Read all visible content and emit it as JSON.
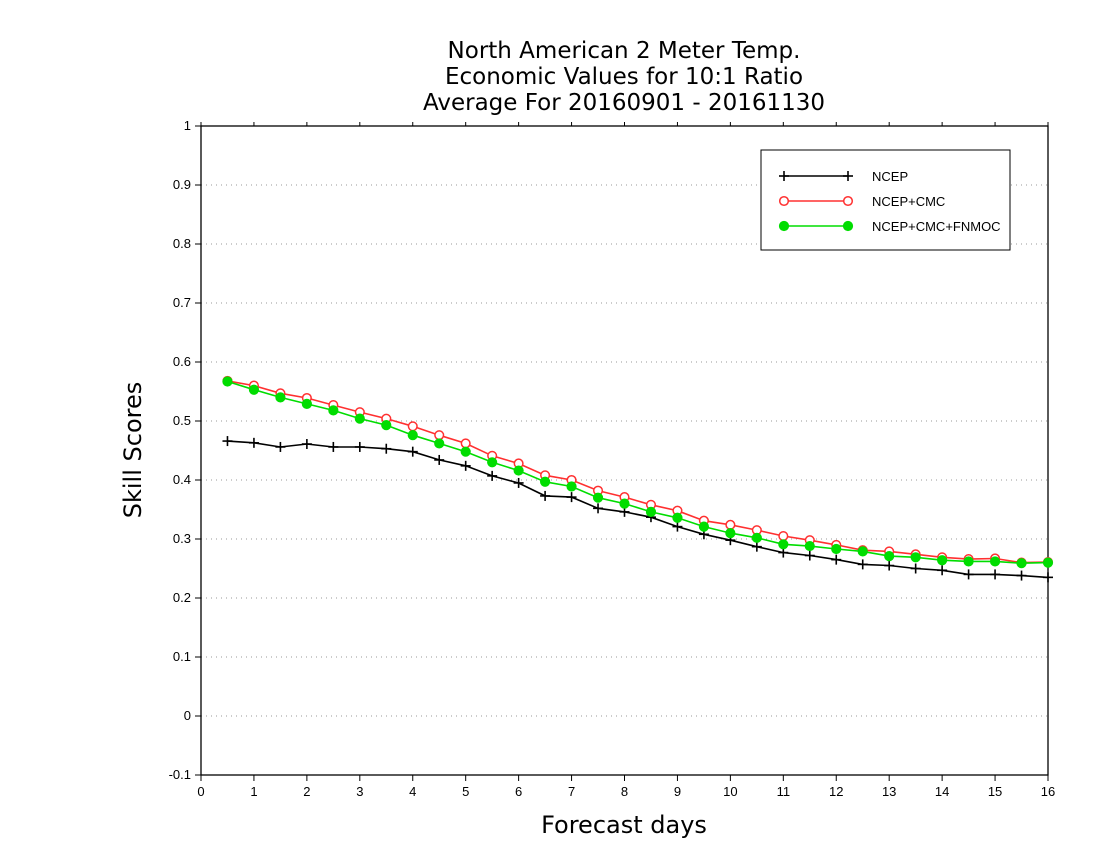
{
  "chart_data": {
    "type": "line",
    "title_lines": [
      "North American 2 Meter Temp.",
      "Economic Values for 10:1 Ratio",
      "Average For 20160901 - 20161130"
    ],
    "xlabel": "Forecast days",
    "ylabel": "Skill Scores",
    "xlim": [
      0,
      16
    ],
    "ylim": [
      -0.1,
      1
    ],
    "x_ticks": [
      0,
      1,
      2,
      3,
      4,
      5,
      6,
      7,
      8,
      9,
      10,
      11,
      12,
      13,
      14,
      15,
      16
    ],
    "y_ticks": [
      -0.1,
      0,
      0.1,
      0.2,
      0.3,
      0.4,
      0.5,
      0.6,
      0.7,
      0.8,
      0.9,
      1
    ],
    "y_tick_labels": [
      "-0.1",
      "0",
      "0.1",
      "0.2",
      "0.3",
      "0.4",
      "0.5",
      "0.6",
      "0.7",
      "0.8",
      "0.9",
      "1"
    ],
    "grid": "horizontal-dotted",
    "legend_position": "top-right",
    "x": [
      0.5,
      1,
      1.5,
      2,
      2.5,
      3,
      3.5,
      4,
      4.5,
      5,
      5.5,
      6,
      6.5,
      7,
      7.5,
      8,
      8.5,
      9,
      9.5,
      10,
      10.5,
      11,
      11.5,
      12,
      12.5,
      13,
      13.5,
      14,
      14.5,
      15,
      15.5,
      16
    ],
    "series": [
      {
        "name": "NCEP",
        "color": "#000000",
        "marker": "plus",
        "values": [
          0.466,
          0.463,
          0.456,
          0.461,
          0.456,
          0.456,
          0.453,
          0.448,
          0.434,
          0.424,
          0.407,
          0.395,
          0.373,
          0.371,
          0.352,
          0.346,
          0.337,
          0.321,
          0.308,
          0.298,
          0.287,
          0.277,
          0.272,
          0.265,
          0.257,
          0.255,
          0.25,
          0.247,
          0.24,
          0.24,
          0.238,
          0.235
        ]
      },
      {
        "name": "NCEP+CMC",
        "color": "#ff3030",
        "marker": "open-circle",
        "values": [
          0.568,
          0.56,
          0.547,
          0.539,
          0.527,
          0.515,
          0.504,
          0.491,
          0.476,
          0.462,
          0.441,
          0.428,
          0.408,
          0.4,
          0.382,
          0.371,
          0.358,
          0.348,
          0.331,
          0.324,
          0.315,
          0.305,
          0.298,
          0.29,
          0.281,
          0.279,
          0.274,
          0.269,
          0.266,
          0.267,
          0.26,
          0.261
        ]
      },
      {
        "name": "NCEP+CMC+FNMOC",
        "color": "#00dd00",
        "marker": "filled-circle",
        "values": [
          0.567,
          0.553,
          0.54,
          0.529,
          0.518,
          0.504,
          0.493,
          0.476,
          0.462,
          0.448,
          0.43,
          0.416,
          0.397,
          0.389,
          0.37,
          0.36,
          0.346,
          0.336,
          0.321,
          0.31,
          0.302,
          0.291,
          0.288,
          0.283,
          0.279,
          0.271,
          0.269,
          0.264,
          0.262,
          0.262,
          0.259,
          0.26
        ]
      }
    ]
  }
}
